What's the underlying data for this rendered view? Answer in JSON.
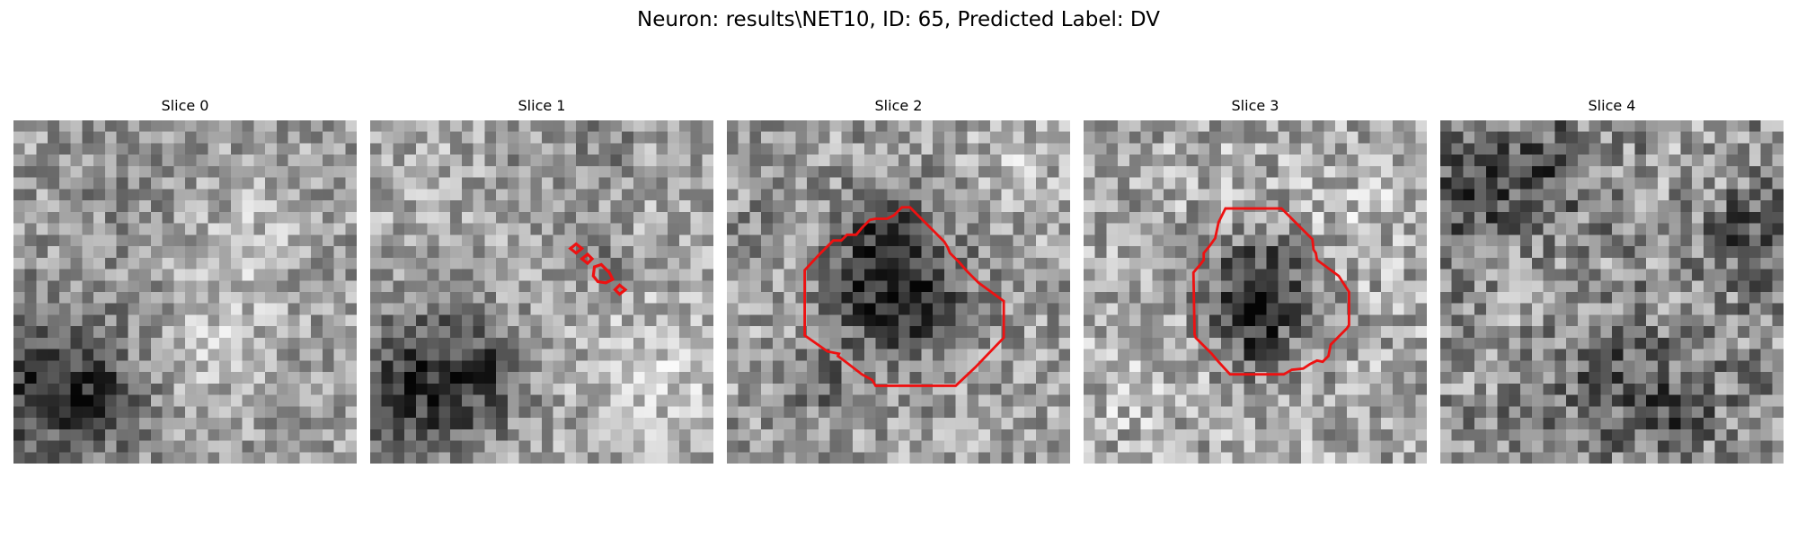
{
  "figure": {
    "title": "Neuron: results\\NET10, ID: 65, Predicted Label: DV"
  },
  "colors": {
    "contour": "#ee1111",
    "background": "#ffffff"
  },
  "panels": [
    {
      "title": "Slice 0",
      "has_contour": false
    },
    {
      "title": "Slice 1",
      "has_contour": true
    },
    {
      "title": "Slice 2",
      "has_contour": true
    },
    {
      "title": "Slice 3",
      "has_contour": true
    },
    {
      "title": "Slice 4",
      "has_contour": false
    }
  ]
}
